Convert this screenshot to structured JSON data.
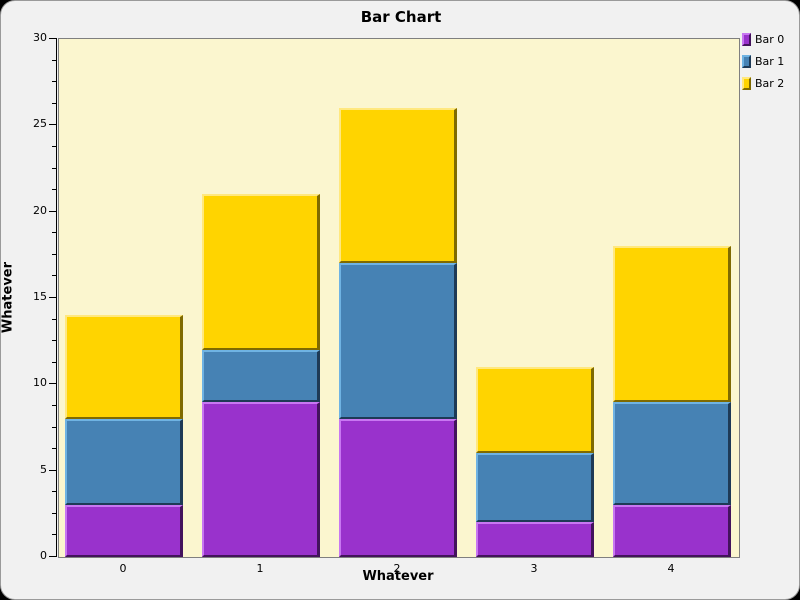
{
  "chart_data": {
    "type": "bar",
    "stacked": true,
    "title": "Bar Chart",
    "xlabel": "Whatever",
    "ylabel": "Whatever",
    "categories": [
      "0",
      "1",
      "2",
      "3",
      "4"
    ],
    "series": [
      {
        "name": "Bar 0",
        "color": "#9932CC",
        "light_edge": "#C877F2",
        "dark_edge": "#43135C",
        "values": [
          3,
          9,
          8,
          2,
          3
        ]
      },
      {
        "name": "Bar 1",
        "color": "#4682B4",
        "light_edge": "#6FB3E3",
        "dark_edge": "#1E3A56",
        "values": [
          5,
          3,
          9,
          4,
          6
        ]
      },
      {
        "name": "Bar 2",
        "color": "#FFD400",
        "light_edge": "#FFE87F",
        "dark_edge": "#7F6A00",
        "values": [
          6,
          9,
          9,
          5,
          9
        ]
      }
    ],
    "stack_totals": [
      14,
      21,
      26,
      11,
      18
    ],
    "ylim": [
      0,
      30
    ],
    "yticks": [
      0,
      5,
      10,
      15,
      20,
      25,
      30
    ],
    "minor_tick_step": 1.25,
    "grid": false,
    "legend_position": "top-right",
    "legend_entries": [
      "Bar 0",
      "Bar 1",
      "Bar 2"
    ],
    "colors": {
      "outer_bg": "#000000",
      "panel_bg": "#F1F1F1",
      "plot_bg": "#FBF6CF",
      "plot_border": "#7F7F7F",
      "axis": "#000000",
      "text": "#000000"
    }
  }
}
